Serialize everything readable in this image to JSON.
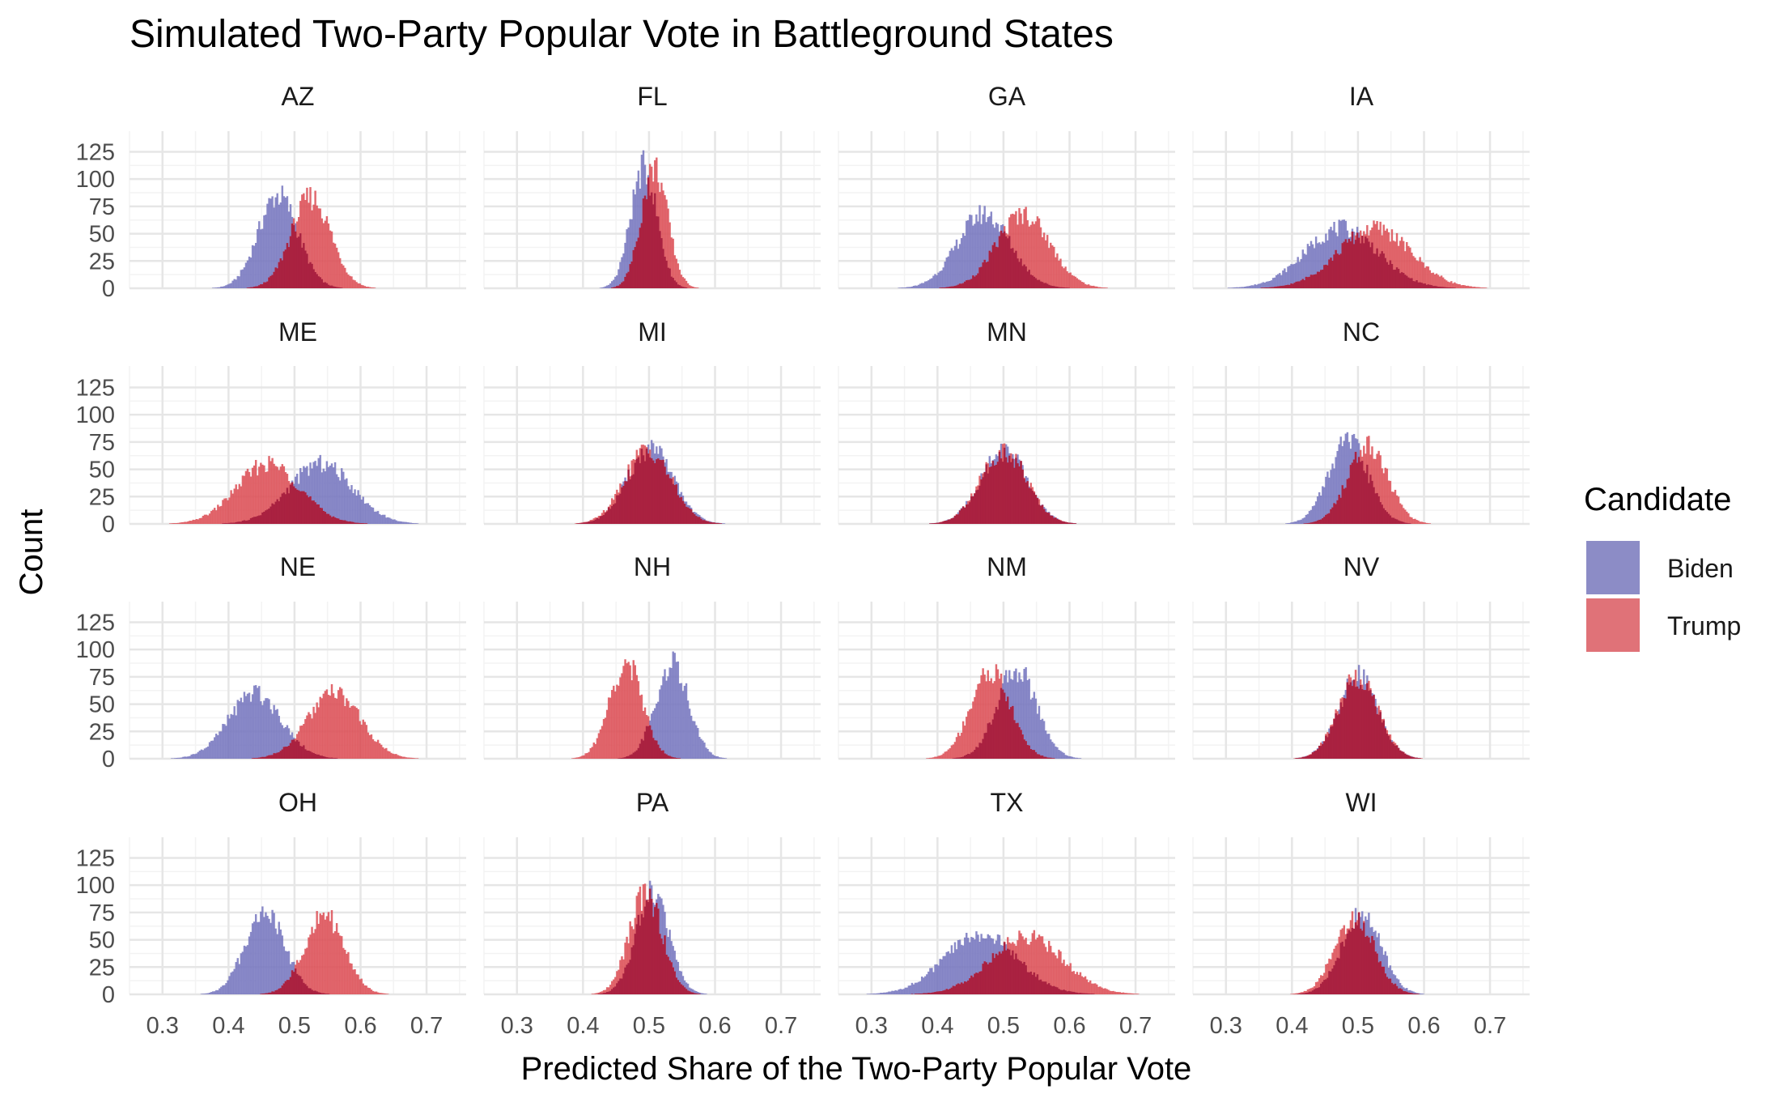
{
  "chart_data": {
    "type": "histogram-facet",
    "title": "Simulated Two-Party Popular Vote in Battleground States",
    "xlabel": "Predicted Share of the Two-Party Popular Vote",
    "ylabel": "Count",
    "xlim": [
      0.25,
      0.76
    ],
    "ylim": [
      0,
      135
    ],
    "x_ticks": [
      0.3,
      0.4,
      0.5,
      0.6,
      0.7
    ],
    "x_tick_labels": [
      "0.3",
      "0.4",
      "0.5",
      "0.6",
      "0.7"
    ],
    "y_ticks": [
      0,
      25,
      50,
      75,
      100,
      125
    ],
    "y_tick_labels": [
      "0",
      "25",
      "50",
      "75",
      "100",
      "125"
    ],
    "grid": true,
    "legend": {
      "title": "Candidate",
      "position": "right",
      "entries": [
        {
          "name": "Biden",
          "color": "#8C8CC6"
        },
        {
          "name": "Trump",
          "color": "#E07278"
        }
      ]
    },
    "overlap_color": "#A8203F",
    "colors": {
      "biden": "#7575BE",
      "trump": "#DC4E55"
    },
    "facet_columns": 4,
    "note": "Each series summarized as an approximately normal histogram: mean, sd and peak count.",
    "facets": [
      {
        "state": "AZ",
        "biden": {
          "mean": 0.475,
          "sd": 0.03,
          "peak": 85
        },
        "trump": {
          "mean": 0.525,
          "sd": 0.03,
          "peak": 83
        }
      },
      {
        "state": "FL",
        "biden": {
          "mean": 0.492,
          "sd": 0.02,
          "peak": 110
        },
        "trump": {
          "mean": 0.508,
          "sd": 0.02,
          "peak": 110
        }
      },
      {
        "state": "GA",
        "biden": {
          "mean": 0.47,
          "sd": 0.04,
          "peak": 68
        },
        "trump": {
          "mean": 0.53,
          "sd": 0.04,
          "peak": 68
        }
      },
      {
        "state": "IA",
        "biden": {
          "mean": 0.475,
          "sd": 0.055,
          "peak": 55
        },
        "trump": {
          "mean": 0.525,
          "sd": 0.055,
          "peak": 55
        }
      },
      {
        "state": "ME",
        "biden": {
          "mean": 0.54,
          "sd": 0.048,
          "peak": 55
        },
        "trump": {
          "mean": 0.46,
          "sd": 0.048,
          "peak": 55
        }
      },
      {
        "state": "MI",
        "biden": {
          "mean": 0.502,
          "sd": 0.035,
          "peak": 68
        },
        "trump": {
          "mean": 0.498,
          "sd": 0.035,
          "peak": 68
        }
      },
      {
        "state": "MN",
        "biden": {
          "mean": 0.5,
          "sd": 0.035,
          "peak": 67
        },
        "trump": {
          "mean": 0.5,
          "sd": 0.035,
          "peak": 67
        }
      },
      {
        "state": "NC",
        "biden": {
          "mean": 0.485,
          "sd": 0.03,
          "peak": 75
        },
        "trump": {
          "mean": 0.515,
          "sd": 0.03,
          "peak": 72
        }
      },
      {
        "state": "NE",
        "biden": {
          "mean": 0.44,
          "sd": 0.04,
          "peak": 60
        },
        "trump": {
          "mean": 0.56,
          "sd": 0.04,
          "peak": 60
        }
      },
      {
        "state": "NH",
        "biden": {
          "mean": 0.535,
          "sd": 0.025,
          "peak": 87
        },
        "trump": {
          "mean": 0.465,
          "sd": 0.025,
          "peak": 87
        }
      },
      {
        "state": "NM",
        "biden": {
          "mean": 0.52,
          "sd": 0.03,
          "peak": 82
        },
        "trump": {
          "mean": 0.48,
          "sd": 0.03,
          "peak": 80
        }
      },
      {
        "state": "NV",
        "biden": {
          "mean": 0.5,
          "sd": 0.03,
          "peak": 75
        },
        "trump": {
          "mean": 0.5,
          "sd": 0.03,
          "peak": 75
        }
      },
      {
        "state": "OH",
        "biden": {
          "mean": 0.455,
          "sd": 0.03,
          "peak": 75
        },
        "trump": {
          "mean": 0.545,
          "sd": 0.03,
          "peak": 73
        }
      },
      {
        "state": "PA",
        "biden": {
          "mean": 0.505,
          "sd": 0.025,
          "peak": 92
        },
        "trump": {
          "mean": 0.495,
          "sd": 0.025,
          "peak": 92
        }
      },
      {
        "state": "TX",
        "biden": {
          "mean": 0.465,
          "sd": 0.055,
          "peak": 55
        },
        "trump": {
          "mean": 0.535,
          "sd": 0.055,
          "peak": 53
        }
      },
      {
        "state": "WI",
        "biden": {
          "mean": 0.505,
          "sd": 0.03,
          "peak": 72
        },
        "trump": {
          "mean": 0.495,
          "sd": 0.03,
          "peak": 70
        }
      }
    ]
  }
}
